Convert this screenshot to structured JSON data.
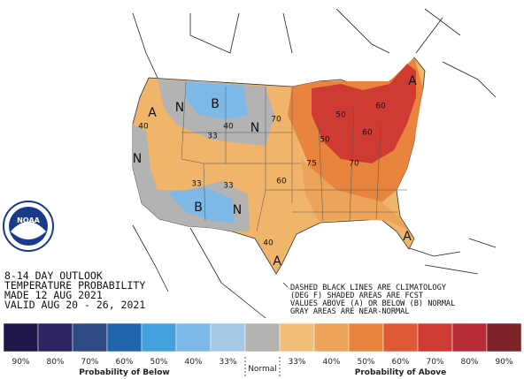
{
  "outlook": {
    "lines": [
      "8-14 DAY OUTLOOK",
      "TEMPERATURE PROBABILITY",
      "MADE  12 AUG 2021",
      "VALID  AUG 20 - 26, 2021"
    ]
  },
  "note": {
    "lines": [
      "DASHED BLACK LINES ARE CLIMATOLOGY",
      "(DEG F) SHADED AREAS ARE FCST",
      "VALUES ABOVE (A) OR BELOW (B) NORMAL",
      "GRAY AREAS ARE NEAR-NORMAL"
    ]
  },
  "logo": "NOAA",
  "map_labels": [
    "A",
    "N",
    "B",
    "40",
    "33",
    "N",
    "70",
    "50",
    "60",
    "50",
    "60",
    "75",
    "70",
    "A",
    "40",
    "N",
    "33",
    "B",
    "N",
    "40",
    "A",
    "A",
    "60",
    "33"
  ],
  "legend": {
    "below": [
      {
        "color": "#21164a",
        "label": "90%"
      },
      {
        "color": "#2c2463",
        "label": "80%"
      },
      {
        "color": "#2f4a82",
        "label": "70%"
      },
      {
        "color": "#1f64ad",
        "label": "60%"
      },
      {
        "color": "#45a0de",
        "label": "50%"
      },
      {
        "color": "#7db8e6",
        "label": "40%"
      },
      {
        "color": "#a5c8e6",
        "label": "33%"
      }
    ],
    "normal": {
      "color": "#b3b3b3",
      "label": "Normal"
    },
    "above": [
      {
        "color": "#f2bf7a",
        "label": "33%"
      },
      {
        "color": "#eca35a",
        "label": "40%"
      },
      {
        "color": "#e8843e",
        "label": "50%"
      },
      {
        "color": "#dd5a34",
        "label": "60%"
      },
      {
        "color": "#cf3b32",
        "label": "70%"
      },
      {
        "color": "#b72b38",
        "label": "80%"
      },
      {
        "color": "#7e2327",
        "label": "90%"
      }
    ],
    "below_title": "Probability of Below",
    "above_title": "Probability of Above"
  }
}
